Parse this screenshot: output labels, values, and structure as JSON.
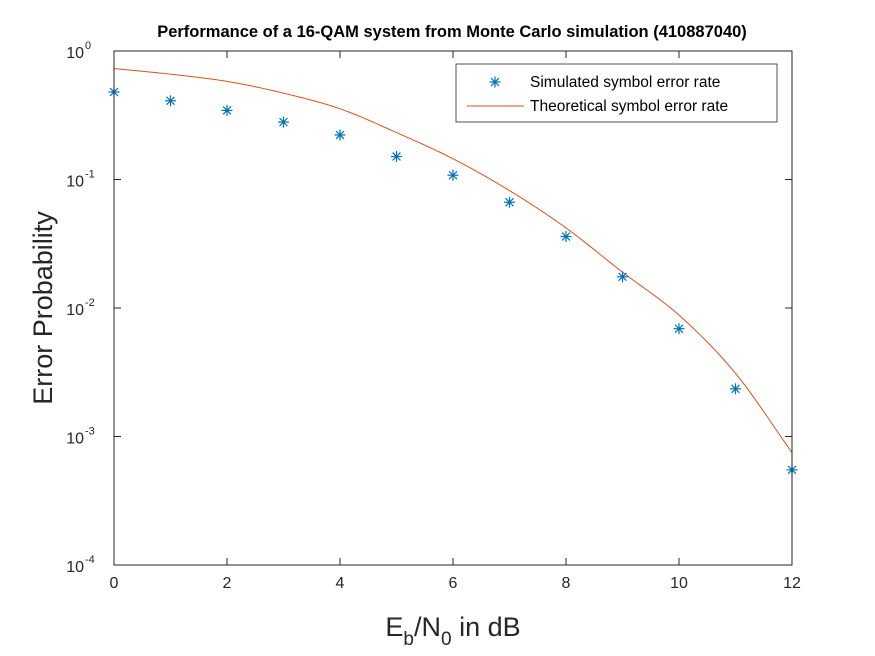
{
  "chart_data": {
    "type": "scatter",
    "title": "Performance of a 16-QAM system from Monte Carlo simulation (410887040)",
    "xlabel": {
      "E": "E",
      "b": "b",
      "slash": "/N",
      "zero": "0",
      "rest": " in dB"
    },
    "ylabel": "Error Probability",
    "xlim": [
      0,
      12
    ],
    "ylim": [
      0.0001,
      1
    ],
    "yscale": "log",
    "xticks": [
      "0",
      "2",
      "4",
      "6",
      "8",
      "10",
      "12"
    ],
    "yticks": [
      {
        "base": "10",
        "exp": "0",
        "value": 1
      },
      {
        "base": "10",
        "exp": "-1",
        "value": 0.1
      },
      {
        "base": "10",
        "exp": "-2",
        "value": 0.01
      },
      {
        "base": "10",
        "exp": "-3",
        "value": 0.001
      },
      {
        "base": "10",
        "exp": "-4",
        "value": 0.0001
      }
    ],
    "legend_position": "top-right",
    "grid": false,
    "series": [
      {
        "name": "Simulated symbol error rate",
        "kind": "markers",
        "marker": "asterisk",
        "color": "#0072BD",
        "x": [
          0,
          1,
          2,
          3,
          4,
          5,
          6,
          7,
          8,
          9,
          10,
          11,
          12
        ],
        "y": [
          0.48,
          0.41,
          0.345,
          0.28,
          0.222,
          0.151,
          0.108,
          0.0665,
          0.036,
          0.0175,
          0.0069,
          0.00235,
          0.00055
        ]
      },
      {
        "name": "Theoretical symbol error rate",
        "kind": "line",
        "color": "#D95319",
        "x": [
          0,
          1,
          2,
          3,
          4,
          5,
          6,
          7,
          8,
          9,
          10,
          11,
          12
        ],
        "y": [
          0.73,
          0.66,
          0.58,
          0.47,
          0.355,
          0.232,
          0.145,
          0.082,
          0.042,
          0.019,
          0.0088,
          0.0031,
          0.00075
        ]
      }
    ]
  }
}
